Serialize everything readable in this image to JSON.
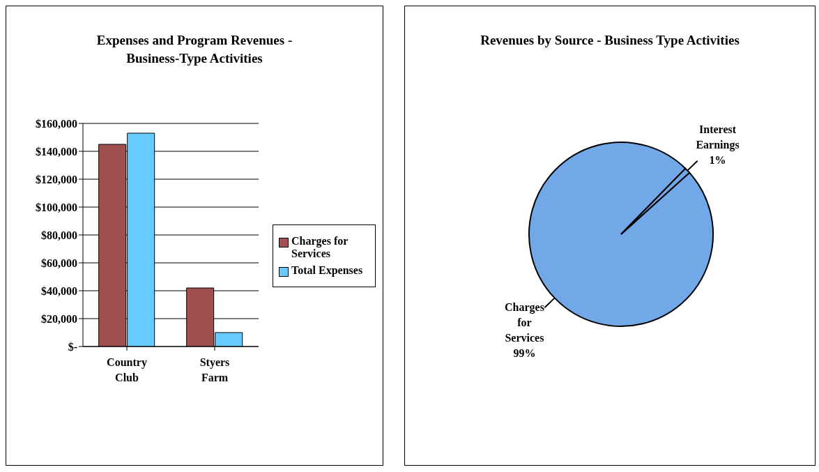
{
  "chart_data": [
    {
      "type": "bar",
      "title": "Expenses and Program Revenues - Business-Type Activities",
      "categories": [
        "Country Club",
        "Styers Farm"
      ],
      "series": [
        {
          "name": "Charges for Services",
          "color": "#a0504f",
          "values": [
            145000,
            42000
          ]
        },
        {
          "name": "Total Expenses",
          "color": "#66ccff",
          "values": [
            153000,
            10000
          ]
        }
      ],
      "ylim": [
        0,
        160000
      ],
      "yticks": [
        {
          "value": 0,
          "label": "$-"
        },
        {
          "value": 20000,
          "label": "$20,000"
        },
        {
          "value": 40000,
          "label": "$40,000"
        },
        {
          "value": 60000,
          "label": "$60,000"
        },
        {
          "value": 80000,
          "label": "$80,000"
        },
        {
          "value": 100000,
          "label": "$100,000"
        },
        {
          "value": 120000,
          "label": "$120,000"
        },
        {
          "value": 140000,
          "label": "$140,000"
        },
        {
          "value": 160000,
          "label": "$160,000"
        }
      ],
      "grid": "y",
      "legend": "right"
    },
    {
      "type": "pie",
      "title": "Revenues by Source - Business Type Activities",
      "categories": [
        "Charges for Services",
        "Interest Earnings"
      ],
      "values": [
        99,
        1
      ],
      "colors": [
        "#73a8e8",
        "#73a8e8"
      ],
      "value_labels": [
        "99%",
        "1%"
      ]
    }
  ]
}
